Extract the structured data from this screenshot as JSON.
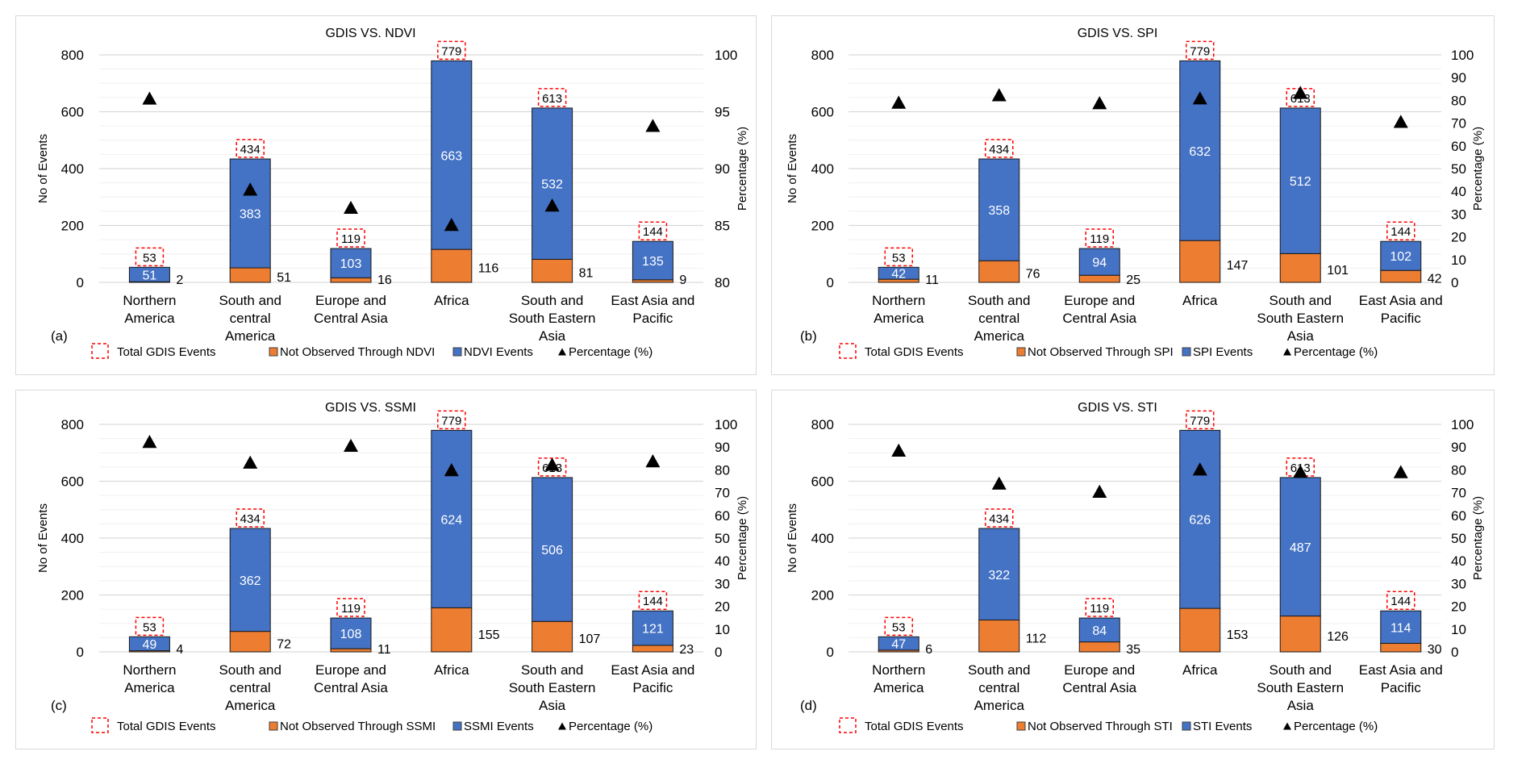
{
  "chart_data": [
    {
      "type": "bar",
      "panel_label": "(a)",
      "title": "GDIS VS. NDVI",
      "categories": [
        [
          "Northern",
          "America"
        ],
        [
          "South and",
          "central",
          "America"
        ],
        [
          "Europe and",
          "Central Asia"
        ],
        [
          "Africa"
        ],
        [
          "South and",
          "South Eastern",
          "Asia"
        ],
        [
          "East Asia and",
          "Pacific"
        ]
      ],
      "ylabel": "No of Events",
      "y2label": "Percentage (%)",
      "ylim": [
        0,
        800
      ],
      "yticks": [
        0,
        200,
        400,
        600,
        800
      ],
      "y2lim": [
        80,
        100
      ],
      "y2ticks": [
        80,
        85,
        90,
        95,
        100
      ],
      "grid": true,
      "legend_position": "bottom",
      "legend": [
        "Total GDIS Events",
        "Not Observed Through NDVI",
        "NDVI Events",
        "Percentage (%)"
      ],
      "series": [
        {
          "name": "Not Observed Through NDVI",
          "kind": "stacked-bar",
          "color": "#ed7d31",
          "values": [
            2,
            51,
            16,
            116,
            81,
            9
          ]
        },
        {
          "name": "NDVI Events",
          "kind": "stacked-bar",
          "color": "#4472c4",
          "values": [
            51,
            383,
            103,
            663,
            532,
            135
          ]
        },
        {
          "name": "Total GDIS Events",
          "kind": "label-box",
          "color": "#ff0000",
          "values": [
            53,
            434,
            119,
            779,
            613,
            144
          ]
        },
        {
          "name": "Percentage (%)",
          "kind": "marker",
          "axis": "secondary",
          "color": "#000000",
          "values": [
            96.2,
            88.2,
            86.6,
            85.1,
            86.8,
            93.8
          ]
        }
      ]
    },
    {
      "type": "bar",
      "panel_label": "(b)",
      "title": "GDIS VS. SPI",
      "categories": [
        [
          "Northern",
          "America"
        ],
        [
          "South and",
          "central",
          "America"
        ],
        [
          "Europe and",
          "Central Asia"
        ],
        [
          "Africa"
        ],
        [
          "South and",
          "South Eastern",
          "Asia"
        ],
        [
          "East Asia and",
          "Pacific"
        ]
      ],
      "ylabel": "No of Events",
      "y2label": "Percentage (%)",
      "ylim": [
        0,
        800
      ],
      "yticks": [
        0,
        200,
        400,
        600,
        800
      ],
      "y2lim": [
        0,
        100
      ],
      "y2ticks": [
        0,
        10,
        20,
        30,
        40,
        50,
        60,
        70,
        80,
        90,
        100
      ],
      "grid": true,
      "legend_position": "bottom",
      "legend": [
        "Total GDIS Events",
        "Not Observed Through SPI",
        "SPI Events",
        "Percentage (%)"
      ],
      "series": [
        {
          "name": "Not Observed Through SPI",
          "kind": "stacked-bar",
          "color": "#ed7d31",
          "values": [
            11,
            76,
            25,
            147,
            101,
            42
          ]
        },
        {
          "name": "SPI Events",
          "kind": "stacked-bar",
          "color": "#4472c4",
          "values": [
            42,
            358,
            94,
            632,
            512,
            102
          ]
        },
        {
          "name": "Total GDIS Events",
          "kind": "label-box",
          "color": "#ff0000",
          "values": [
            53,
            434,
            119,
            779,
            613,
            144
          ]
        },
        {
          "name": "Percentage (%)",
          "kind": "marker",
          "axis": "secondary",
          "color": "#000000",
          "values": [
            79.2,
            82.5,
            79.0,
            81.1,
            83.5,
            70.8
          ]
        }
      ]
    },
    {
      "type": "bar",
      "panel_label": "(c)",
      "title": "GDIS VS. SSMI",
      "categories": [
        [
          "Northern",
          "America"
        ],
        [
          "South and",
          "central",
          "America"
        ],
        [
          "Europe and",
          "Central Asia"
        ],
        [
          "Africa"
        ],
        [
          "South and",
          "South Eastern",
          "Asia"
        ],
        [
          "East Asia and",
          "Pacific"
        ]
      ],
      "ylabel": "No of Events",
      "y2label": "Percentage (%)",
      "ylim": [
        0,
        800
      ],
      "yticks": [
        0,
        200,
        400,
        600,
        800
      ],
      "y2lim": [
        0,
        100
      ],
      "y2ticks": [
        0,
        10,
        20,
        30,
        40,
        50,
        60,
        70,
        80,
        90,
        100
      ],
      "grid": true,
      "legend_position": "bottom",
      "legend": [
        "Total GDIS Events",
        "Not Observed Through SSMI",
        "SSMI Events",
        "Percentage (%)"
      ],
      "series": [
        {
          "name": "Not Observed Through SSMI",
          "kind": "stacked-bar",
          "color": "#ed7d31",
          "values": [
            4,
            72,
            11,
            155,
            107,
            23
          ]
        },
        {
          "name": "SSMI Events",
          "kind": "stacked-bar",
          "color": "#4472c4",
          "values": [
            49,
            362,
            108,
            624,
            506,
            121
          ]
        },
        {
          "name": "Total GDIS Events",
          "kind": "label-box",
          "color": "#ff0000",
          "values": [
            53,
            434,
            119,
            779,
            613,
            144
          ]
        },
        {
          "name": "Percentage (%)",
          "kind": "marker",
          "axis": "secondary",
          "color": "#000000",
          "values": [
            92.5,
            83.4,
            90.8,
            80.1,
            82.5,
            84.0
          ]
        }
      ]
    },
    {
      "type": "bar",
      "panel_label": "(d)",
      "title": "GDIS VS. STI",
      "categories": [
        [
          "Northern",
          "America"
        ],
        [
          "South and",
          "central",
          "America"
        ],
        [
          "Europe and",
          "Central Asia"
        ],
        [
          "Africa"
        ],
        [
          "South and",
          "South Eastern",
          "Asia"
        ],
        [
          "East Asia and",
          "Pacific"
        ]
      ],
      "ylabel": "No of Events",
      "y2label": "Percentage (%)",
      "ylim": [
        0,
        800
      ],
      "yticks": [
        0,
        200,
        400,
        600,
        800
      ],
      "y2lim": [
        0,
        100
      ],
      "y2ticks": [
        0,
        10,
        20,
        30,
        40,
        50,
        60,
        70,
        80,
        90,
        100
      ],
      "grid": true,
      "legend_position": "bottom",
      "legend": [
        "Total GDIS Events",
        "Not Observed Through STI",
        "STI Events",
        "Percentage (%)"
      ],
      "series": [
        {
          "name": "Not Observed Through STI",
          "kind": "stacked-bar",
          "color": "#ed7d31",
          "values": [
            6,
            112,
            35,
            153,
            126,
            30
          ]
        },
        {
          "name": "STI Events",
          "kind": "stacked-bar",
          "color": "#4472c4",
          "values": [
            47,
            322,
            84,
            626,
            487,
            114
          ]
        },
        {
          "name": "Total GDIS Events",
          "kind": "label-box",
          "color": "#ff0000",
          "values": [
            53,
            434,
            119,
            779,
            613,
            144
          ]
        },
        {
          "name": "Percentage (%)",
          "kind": "marker",
          "axis": "secondary",
          "color": "#000000",
          "values": [
            88.7,
            74.2,
            70.6,
            80.4,
            79.4,
            79.2
          ]
        }
      ]
    }
  ]
}
